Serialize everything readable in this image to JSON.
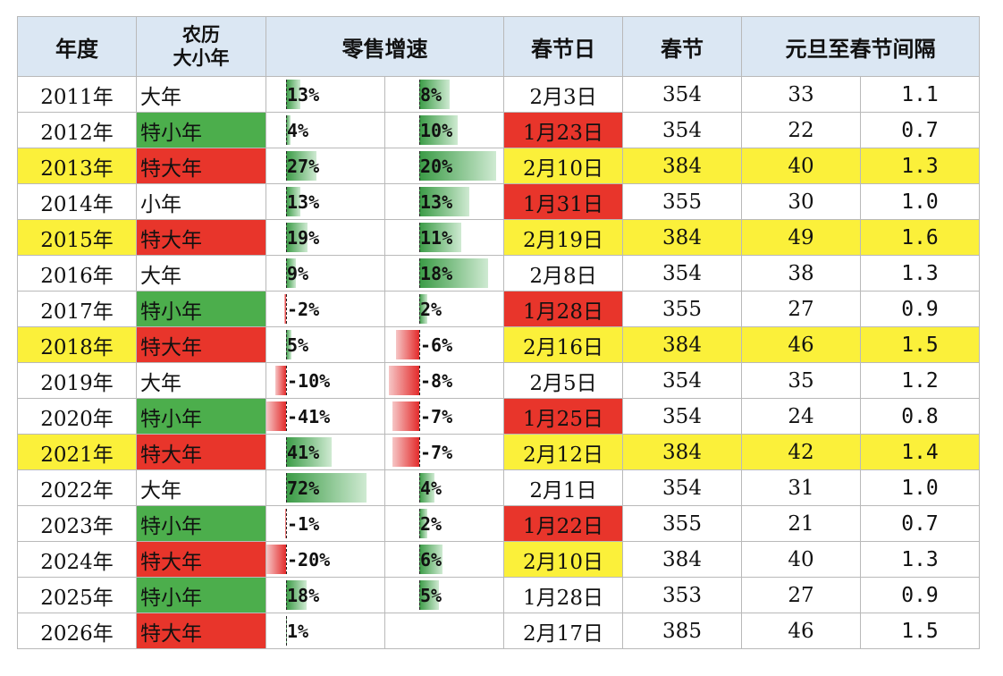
{
  "headers": {
    "year": "年度",
    "lunar": [
      "农历",
      "大小年"
    ],
    "retail": "零售增速",
    "spring_date": "春节日",
    "spring": "春节",
    "interval": "元旦至春节间隔"
  },
  "colors": {
    "header_bg": "#dbe7f3",
    "red": "#e8352b",
    "green": "#4cae4c",
    "yellow": "#fbf03a",
    "bar_positive": "#3a9b45",
    "bar_negative": "#e32b2b"
  },
  "rows": [
    {
      "year": "2011年",
      "lunar": "大年",
      "g1": "13%",
      "g2": "8%",
      "date": "2月3日",
      "spring": "354",
      "interval": "33",
      "ratio": "1.1"
    },
    {
      "year": "2012年",
      "lunar": "特小年",
      "g1": "4%",
      "g2": "10%",
      "date": "1月23日",
      "spring": "354",
      "interval": "22",
      "ratio": "0.7"
    },
    {
      "year": "2013年",
      "lunar": "特大年",
      "g1": "27%",
      "g2": "20%",
      "date": "2月10日",
      "spring": "384",
      "interval": "40",
      "ratio": "1.3"
    },
    {
      "year": "2014年",
      "lunar": "小年",
      "g1": "13%",
      "g2": "13%",
      "date": "1月31日",
      "spring": "355",
      "interval": "30",
      "ratio": "1.0"
    },
    {
      "year": "2015年",
      "lunar": "特大年",
      "g1": "19%",
      "g2": "11%",
      "date": "2月19日",
      "spring": "384",
      "interval": "49",
      "ratio": "1.6"
    },
    {
      "year": "2016年",
      "lunar": "大年",
      "g1": "9%",
      "g2": "18%",
      "date": "2月8日",
      "spring": "354",
      "interval": "38",
      "ratio": "1.3"
    },
    {
      "year": "2017年",
      "lunar": "特小年",
      "g1": "-2%",
      "g2": "2%",
      "date": "1月28日",
      "spring": "355",
      "interval": "27",
      "ratio": "0.9"
    },
    {
      "year": "2018年",
      "lunar": "特大年",
      "g1": "5%",
      "g2": "-6%",
      "date": "2月16日",
      "spring": "384",
      "interval": "46",
      "ratio": "1.5"
    },
    {
      "year": "2019年",
      "lunar": "大年",
      "g1": "-10%",
      "g2": "-8%",
      "date": "2月5日",
      "spring": "354",
      "interval": "35",
      "ratio": "1.2"
    },
    {
      "year": "2020年",
      "lunar": "特小年",
      "g1": "-41%",
      "g2": "-7%",
      "date": "1月25日",
      "spring": "354",
      "interval": "24",
      "ratio": "0.8"
    },
    {
      "year": "2021年",
      "lunar": "特大年",
      "g1": "41%",
      "g2": "-7%",
      "date": "2月12日",
      "spring": "384",
      "interval": "42",
      "ratio": "1.4"
    },
    {
      "year": "2022年",
      "lunar": "大年",
      "g1": "72%",
      "g2": "4%",
      "date": "2月1日",
      "spring": "354",
      "interval": "31",
      "ratio": "1.0"
    },
    {
      "year": "2023年",
      "lunar": "特小年",
      "g1": "-1%",
      "g2": "2%",
      "date": "1月22日",
      "spring": "355",
      "interval": "21",
      "ratio": "0.7"
    },
    {
      "year": "2024年",
      "lunar": "特大年",
      "g1": "-20%",
      "g2": "6%",
      "date": "2月10日",
      "spring": "384",
      "interval": "40",
      "ratio": "1.3"
    },
    {
      "year": "2025年",
      "lunar": "特小年",
      "g1": "18%",
      "g2": "5%",
      "date": "1月28日",
      "spring": "353",
      "interval": "27",
      "ratio": "0.9"
    },
    {
      "year": "2026年",
      "lunar": "特大年",
      "g1": "1%",
      "g2": "",
      "date": "2月17日",
      "spring": "385",
      "interval": "46",
      "ratio": "1.5"
    }
  ]
}
